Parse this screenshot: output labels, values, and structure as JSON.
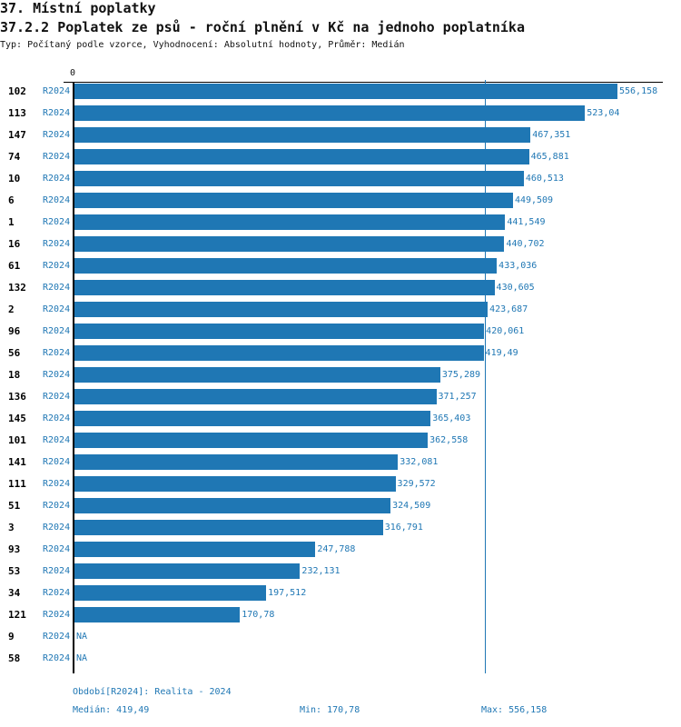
{
  "header": {
    "title": "37. Místní poplatky",
    "subtitle": "37.2.2 Poplatek ze psů - roční plnění v Kč na jednoho poplatníka",
    "type_line": "Typ: Počítaný podle vzorce, Vyhodnocení: Absolutní hodnoty, Průměr: Medián"
  },
  "chart_data": {
    "type": "bar",
    "orientation": "horizontal",
    "xlim": [
      0,
      556.158
    ],
    "x_tick_label": "0",
    "bar_color": "#1f77b4",
    "categories": [
      "102",
      "113",
      "147",
      "74",
      "10",
      "6",
      "1",
      "16",
      "61",
      "132",
      "2",
      "96",
      "56",
      "18",
      "136",
      "145",
      "101",
      "141",
      "111",
      "51",
      "3",
      "93",
      "53",
      "34",
      "121",
      "9",
      "58"
    ],
    "period": "R2024",
    "values": [
      556.158,
      523.04,
      467.351,
      465.881,
      460.513,
      449.509,
      441.549,
      440.702,
      433.036,
      430.605,
      423.687,
      420.061,
      419.49,
      375.289,
      371.257,
      365.403,
      362.558,
      332.081,
      329.572,
      324.509,
      316.791,
      247.788,
      232.131,
      197.512,
      170.78,
      null,
      null
    ],
    "labels": [
      "556,158",
      "523,04",
      "467,351",
      "465,881",
      "460,513",
      "449,509",
      "441,549",
      "440,702",
      "433,036",
      "430,605",
      "423,687",
      "420,061",
      "419,49",
      "375,289",
      "371,257",
      "365,403",
      "362,558",
      "332,081",
      "329,572",
      "324,509",
      "316,791",
      "247,788",
      "232,131",
      "197,512",
      "170,78",
      "NA",
      "NA"
    ],
    "median": 419.49
  },
  "footer": {
    "period": "Období[R2024]: Realita - 2024",
    "median": "Medián: 419,49",
    "min": "Min: 170,78",
    "max": "Max: 556,158"
  }
}
